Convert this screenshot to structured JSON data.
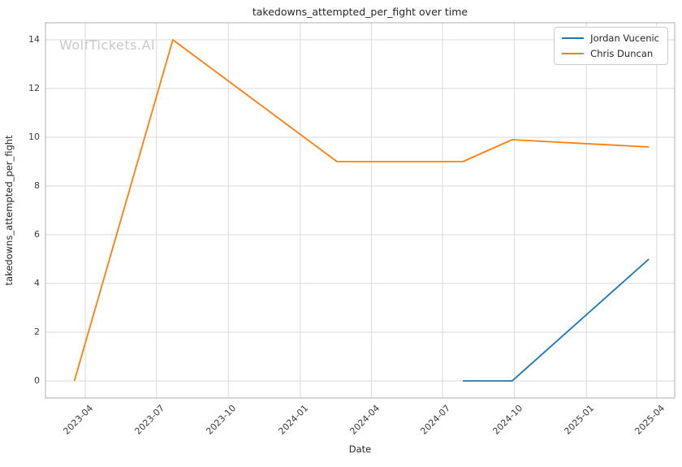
{
  "watermark": "WolfTickets.AI",
  "chart_data": {
    "type": "line",
    "title": "takedowns_attempted_per_fight over time",
    "xlabel": "Date",
    "ylabel": "takedowns_attempted_per_fight",
    "x_tick_labels": [
      "2023-04",
      "2023-07",
      "2023-10",
      "2024-01",
      "2024-04",
      "2024-07",
      "2024-10",
      "2025-01",
      "2025-04"
    ],
    "y_ticks": [
      0,
      2,
      4,
      6,
      8,
      10,
      12,
      14
    ],
    "xlim": [
      "2023-02-09",
      "2025-04-24"
    ],
    "ylim": [
      -0.7,
      14.7
    ],
    "grid": true,
    "legend_position": "upper right",
    "series": [
      {
        "name": "Jordan Vucenic",
        "color": "#1f77b4",
        "points": [
          {
            "date": "2024-07-27",
            "value": 0
          },
          {
            "date": "2024-09-28",
            "value": 0
          },
          {
            "date": "2025-03-22",
            "value": 5
          }
        ]
      },
      {
        "name": "Chris Duncan",
        "color": "#ff7f0e",
        "points": [
          {
            "date": "2023-03-18",
            "value": 0
          },
          {
            "date": "2023-07-22",
            "value": 14
          },
          {
            "date": "2024-02-17",
            "value": 9
          },
          {
            "date": "2024-07-27",
            "value": 9
          },
          {
            "date": "2024-09-28",
            "value": 9.9
          },
          {
            "date": "2025-03-22",
            "value": 9.6
          }
        ]
      }
    ]
  }
}
